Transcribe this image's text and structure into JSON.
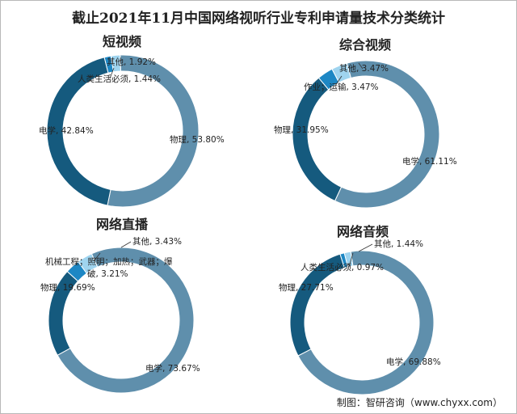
{
  "page": {
    "title": "截止2021年11月中国网络视听行业专利申请量技术分类统计",
    "source": "制图：智研咨询（www.chyxx.com）"
  },
  "colors": {
    "dark_blue": "#155a7e",
    "steel_blue": "#5f8fac",
    "bright_blue": "#1d87c4",
    "light_blue": "#9fd4ef",
    "line": "#333333",
    "label": "#222222"
  },
  "chart_data": [
    {
      "type": "pie",
      "title": "短视频",
      "unit": "%",
      "series": [
        {
          "name": "物理",
          "value": 53.8,
          "label": "物理, 53.80%"
        },
        {
          "name": "电学",
          "value": 42.84,
          "label": "电学, 42.84%"
        },
        {
          "name": "人类生活必须",
          "value": 1.44,
          "label": "人类生活必须, 1.44%"
        },
        {
          "name": "其他",
          "value": 1.92,
          "label": "其他, 1.92%"
        }
      ]
    },
    {
      "type": "pie",
      "title": "综合视频",
      "unit": "%",
      "series": [
        {
          "name": "电学",
          "value": 61.11,
          "label": "电学, 61.11%"
        },
        {
          "name": "物理",
          "value": 31.95,
          "label": "物理, 31.95%"
        },
        {
          "name": "作业；运输",
          "value": 3.47,
          "label": "作业；运输, 3.47%"
        },
        {
          "name": "其他",
          "value": 3.47,
          "label": "其他, 3.47%"
        }
      ]
    },
    {
      "type": "pie",
      "title": "网络直播",
      "unit": "%",
      "series": [
        {
          "name": "电学",
          "value": 73.67,
          "label": "电学, 73.67%"
        },
        {
          "name": "物理",
          "value": 19.69,
          "label": "物理, 19.69%"
        },
        {
          "name": "机械工程；照明；加热；武器；爆破",
          "value": 3.21,
          "label": "机械工程；照明；加热；武器；爆破, 3.21%"
        },
        {
          "name": "其他",
          "value": 3.43,
          "label": "其他, 3.43%"
        }
      ]
    },
    {
      "type": "pie",
      "title": "网络音频",
      "unit": "%",
      "series": [
        {
          "name": "电学",
          "value": 69.88,
          "label": "电学, 69.88%"
        },
        {
          "name": "物理",
          "value": 27.71,
          "label": "物理, 27.71%"
        },
        {
          "name": "人类生活必须",
          "value": 0.97,
          "label": "人类生活必须, 0.97%"
        },
        {
          "name": "其他",
          "value": 1.44,
          "label": "其他, 1.44%"
        }
      ]
    }
  ]
}
